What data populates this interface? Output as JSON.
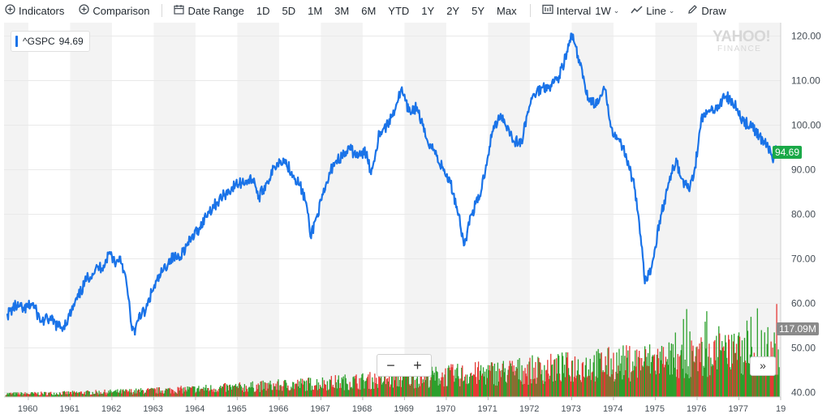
{
  "toolbar": {
    "indicators": "Indicators",
    "comparison": "Comparison",
    "date_range": "Date Range",
    "ranges": [
      "1D",
      "5D",
      "1M",
      "3M",
      "6M",
      "YTD",
      "1Y",
      "2Y",
      "5Y",
      "Max"
    ],
    "interval_label": "Interval",
    "interval_value": "1W",
    "chart_type": "Line",
    "draw": "Draw"
  },
  "legend": {
    "symbol": "^GSPC",
    "value": "94.69",
    "color": "#1a73e8"
  },
  "watermark": {
    "main": "YAHOO!",
    "sub": "FINANCE"
  },
  "current_price_label": "94.69",
  "volume_label": "117.09M",
  "zoom": {
    "minus": "−",
    "plus": "+"
  },
  "scroll_label": "»",
  "colors": {
    "line": "#1a73e8",
    "vol_up": "#2ca02c",
    "vol_down": "#e53935",
    "price_tag": "#1aa948",
    "band": "#f3f3f3"
  },
  "chart_data": {
    "type": "line",
    "title": "",
    "series": [
      {
        "name": "^GSPC",
        "x": [
          1959.5,
          1959.7,
          1959.9,
          1960.1,
          1960.3,
          1960.5,
          1960.7,
          1960.8,
          1960.95,
          1961.2,
          1961.4,
          1961.6,
          1961.8,
          1961.95,
          1962.1,
          1962.2,
          1962.3,
          1962.4,
          1962.45,
          1962.55,
          1962.65,
          1962.8,
          1962.95,
          1963.2,
          1963.4,
          1963.6,
          1963.8,
          1963.9,
          1964.1,
          1964.3,
          1964.5,
          1964.7,
          1964.95,
          1965.2,
          1965.4,
          1965.5,
          1965.7,
          1965.95,
          1966.1,
          1966.3,
          1966.5,
          1966.65,
          1966.75,
          1966.9,
          1967.1,
          1967.3,
          1967.5,
          1967.7,
          1967.9,
          1968.1,
          1968.2,
          1968.4,
          1968.6,
          1968.8,
          1968.92,
          1969.1,
          1969.3,
          1969.5,
          1969.7,
          1969.9,
          1970.1,
          1970.3,
          1970.42,
          1970.5,
          1970.6,
          1970.8,
          1970.95,
          1971.1,
          1971.3,
          1971.5,
          1971.6,
          1971.8,
          1971.95,
          1972.1,
          1972.3,
          1972.5,
          1972.7,
          1972.9,
          1973.0,
          1973.2,
          1973.4,
          1973.6,
          1973.8,
          1973.95,
          1974.1,
          1974.3,
          1974.5,
          1974.65,
          1974.75,
          1974.85,
          1974.95,
          1975.1,
          1975.3,
          1975.5,
          1975.6,
          1975.8,
          1975.95,
          1976.1,
          1976.3,
          1976.5,
          1976.7,
          1976.9,
          1977.1,
          1977.3,
          1977.5,
          1977.7,
          1977.8,
          1977.9
        ],
        "y": [
          57.5,
          59.5,
          58.5,
          60.0,
          56.0,
          56.5,
          55.0,
          54.5,
          56.5,
          61.5,
          65.5,
          67.5,
          68.5,
          71.5,
          69.0,
          70.5,
          67.0,
          61.0,
          56.0,
          53.0,
          57.5,
          58.0,
          62.5,
          67.0,
          70.0,
          70.5,
          73.0,
          74.5,
          77.0,
          80.5,
          82.5,
          84.5,
          86.5,
          87.5,
          88.0,
          83.5,
          87.0,
          91.5,
          92.5,
          89.5,
          86.5,
          82.5,
          75.0,
          79.5,
          85.5,
          91.5,
          93.0,
          94.5,
          93.0,
          94.0,
          89.0,
          98.5,
          100.0,
          104.5,
          108.0,
          103.0,
          104.0,
          97.5,
          94.5,
          90.5,
          87.0,
          80.0,
          73.0,
          76.0,
          80.0,
          84.0,
          91.0,
          98.5,
          102.5,
          99.0,
          96.5,
          96.0,
          103.0,
          107.0,
          108.5,
          109.0,
          111.0,
          116.5,
          120.5,
          113.5,
          106.0,
          104.5,
          108.0,
          99.5,
          97.0,
          93.5,
          86.0,
          75.0,
          64.5,
          66.5,
          70.0,
          78.5,
          86.0,
          92.5,
          88.5,
          85.5,
          90.5,
          101.5,
          103.0,
          104.5,
          106.5,
          104.5,
          101.0,
          99.5,
          97.5,
          95.0,
          92.5,
          94.69
        ]
      }
    ],
    "xlabel": "",
    "ylabel": "",
    "xlim": [
      1959.42,
      1978.0
    ],
    "ylim": [
      39.0,
      123.0
    ],
    "x_ticks": [
      "1960",
      "1961",
      "1962",
      "1963",
      "1964",
      "1965",
      "1966",
      "1967",
      "1968",
      "1969",
      "1970",
      "1971",
      "1972",
      "1973",
      "1974",
      "1975",
      "1976",
      "1977",
      "19"
    ],
    "y_ticks": [
      "40.00",
      "50.00",
      "60.00",
      "70.00",
      "80.00",
      "90.00",
      "100.00",
      "110.00",
      "120.00"
    ],
    "volume_series": "volume bars, up weeks green, down weeks red, rising from lows in 1960 to highs in 1976-1977",
    "grid": true,
    "legend_position": "top-left"
  }
}
